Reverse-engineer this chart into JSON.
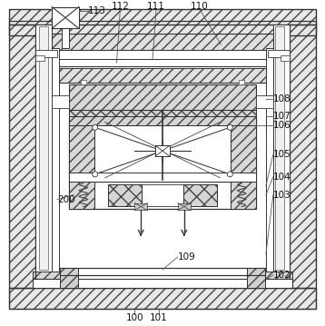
{
  "figsize": [
    3.58,
    3.59
  ],
  "dpi": 100,
  "bg": "white",
  "lc": "#555555",
  "lc2": "#333333"
}
